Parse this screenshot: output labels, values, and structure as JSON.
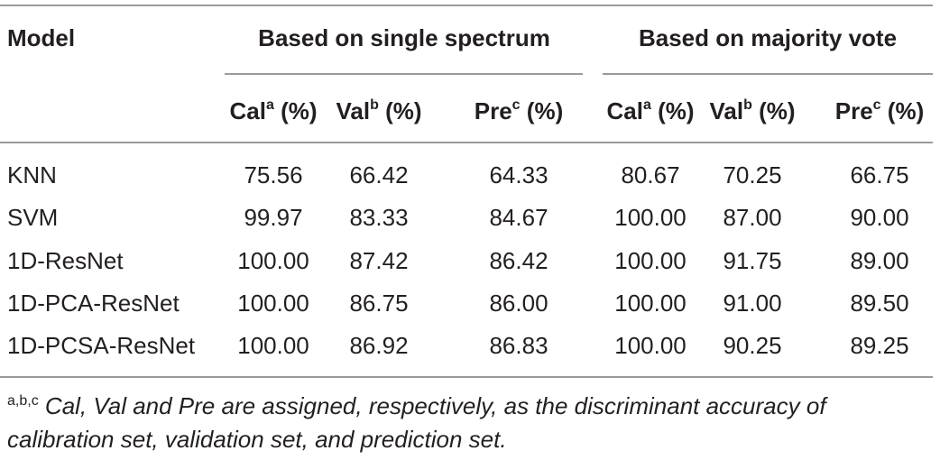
{
  "table": {
    "model_header": "Model",
    "group_single": "Based on single spectrum",
    "group_majority": "Based on majority vote",
    "col_headers": [
      {
        "name": "Cal",
        "sup": "a",
        "unit": " (%)"
      },
      {
        "name": "Val",
        "sup": "b",
        "unit": " (%)"
      },
      {
        "name": "Pre",
        "sup": "c",
        "unit": " (%)"
      },
      {
        "name": "Cal",
        "sup": "a",
        "unit": " (%)"
      },
      {
        "name": "Val",
        "sup": "b",
        "unit": " (%)"
      },
      {
        "name": "Pre",
        "sup": "c",
        "unit": " (%)"
      }
    ],
    "rows": [
      {
        "model": "KNN",
        "values": [
          "75.56",
          "66.42",
          "64.33",
          "80.67",
          "70.25",
          "66.75"
        ]
      },
      {
        "model": "SVM",
        "values": [
          "99.97",
          "83.33",
          "84.67",
          "100.00",
          "87.00",
          "90.00"
        ]
      },
      {
        "model": "1D-ResNet",
        "values": [
          "100.00",
          "87.42",
          "86.42",
          "100.00",
          "91.75",
          "89.00"
        ]
      },
      {
        "model": "1D-PCA-ResNet",
        "values": [
          "100.00",
          "86.75",
          "86.00",
          "100.00",
          "91.00",
          "89.50"
        ]
      },
      {
        "model": "1D-PCSA-ResNet",
        "values": [
          "100.00",
          "86.92",
          "86.83",
          "100.00",
          "90.25",
          "89.25"
        ]
      }
    ]
  },
  "footnote": {
    "sup": "a,b,c",
    "text": " Cal, Val and Pre are assigned, respectively, as the discriminant accuracy of calibration set, validation set, and prediction set."
  }
}
